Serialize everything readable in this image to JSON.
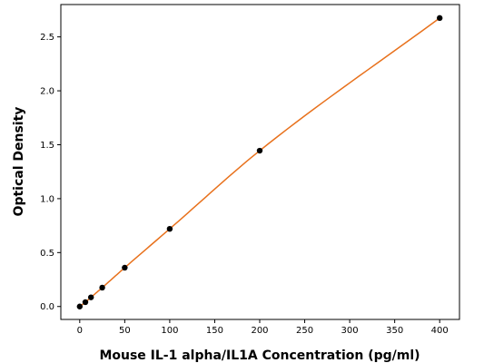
{
  "chart_data": {
    "type": "scatter",
    "title": "",
    "xlabel": "Mouse IL-1 alpha/IL1A Concentration (pg/ml)",
    "ylabel": "Optical Density",
    "xlim": [
      -21,
      422
    ],
    "ylim": [
      -0.12,
      2.8
    ],
    "xticks": [
      0,
      50,
      100,
      150,
      200,
      250,
      300,
      350,
      400
    ],
    "yticks": [
      0.0,
      0.5,
      1.0,
      1.5,
      2.0,
      2.5
    ],
    "xtick_labels": [
      "0",
      "50",
      "100",
      "150",
      "200",
      "250",
      "300",
      "350",
      "400"
    ],
    "ytick_labels": [
      "0.0",
      "0.5",
      "1.0",
      "1.5",
      "2.0",
      "2.5"
    ],
    "grid": false,
    "legend": "none",
    "point_color": "#000000",
    "curve_color": "#e8711c",
    "series": [
      {
        "x": [
          0,
          6.25,
          12.5,
          25,
          50,
          100,
          200,
          400
        ],
        "y": [
          0.0,
          0.04,
          0.085,
          0.175,
          0.36,
          0.72,
          1.445,
          2.675
        ]
      }
    ]
  }
}
